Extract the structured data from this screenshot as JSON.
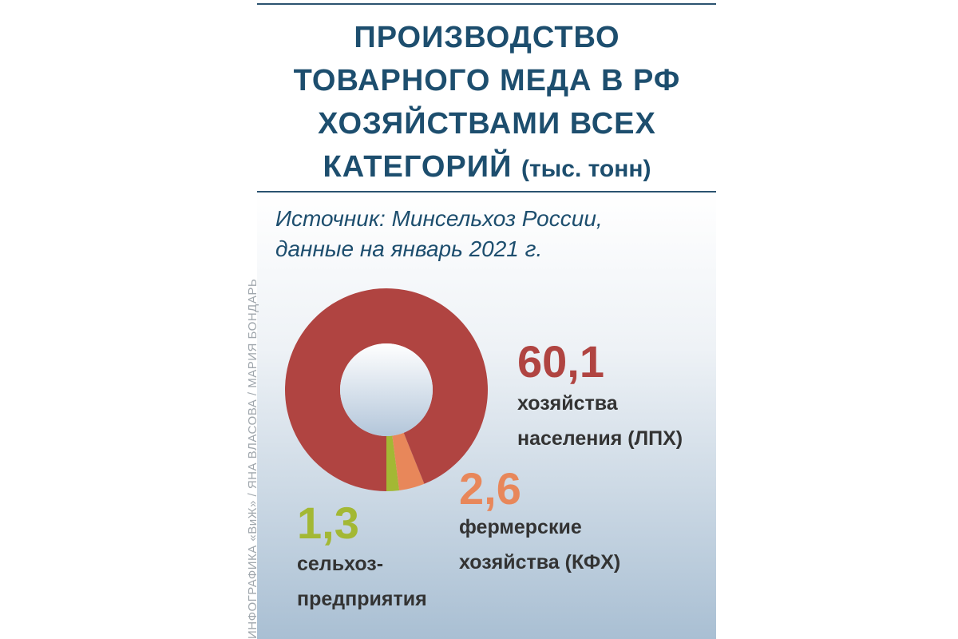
{
  "chart_data": {
    "type": "pie",
    "title": "ПРОИЗВОДСТВО ТОВАРНОГО МЕДА В РФ ХОЗЯЙСТВАМИ ВСЕХ КАТЕГОРИЙ",
    "unit": "(тыс. тонн)",
    "source": "Источник: Минсельхоз России, данные на январь 2021 г.",
    "credit": "ИНФОГРАФИКА «ВиЖ» / ЯНА ВЛАСОВА / МАРИЯ БОНДАРЬ",
    "categories": [
      "сельхоз-предприятия",
      "фермерские хозяйства (КФХ)",
      "хозяйства населения (ЛПХ)"
    ],
    "values": [
      1.3,
      2.6,
      60.1
    ],
    "value_labels": [
      "1,3",
      "2,6",
      "60,1"
    ],
    "colors": [
      "#a3b834",
      "#e8875a",
      "#b04441"
    ]
  }
}
